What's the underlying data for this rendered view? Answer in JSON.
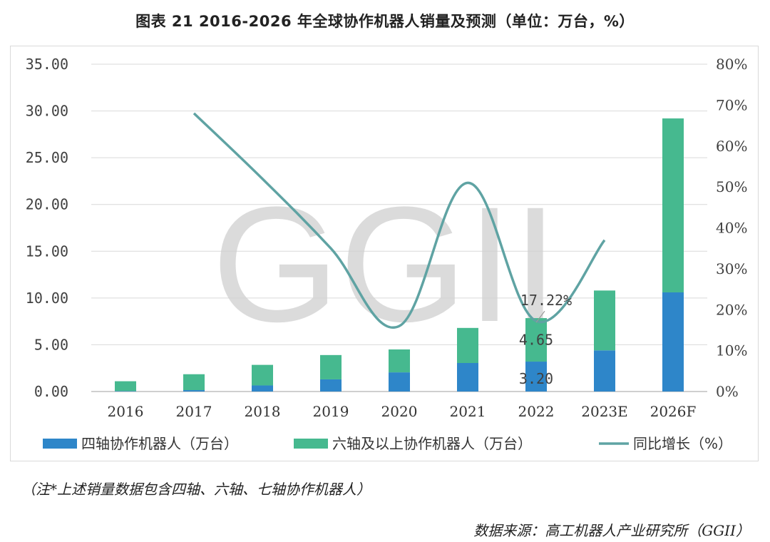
{
  "title": "图表 21   2016-2026 年全球协作机器人销量及预测（单位：万台，%）",
  "note": "（注*上述销量数据包含四轴、六轴、七轴协作机器人）",
  "source": "数据来源：高工机器人产业研究所（GGII）",
  "watermark": "GGII",
  "chart_data": {
    "type": "bar",
    "stacked": true,
    "categories": [
      "2016",
      "2017",
      "2018",
      "2019",
      "2020",
      "2021",
      "2022",
      "2023E",
      "2026F"
    ],
    "series": [
      {
        "name": "四轴协作机器人（万台）",
        "type": "bar",
        "axis": "left",
        "color": "#2e86c9",
        "values": [
          0.05,
          0.15,
          0.65,
          1.3,
          2.05,
          3.05,
          3.2,
          4.4,
          10.6
        ]
      },
      {
        "name": "六轴及以上协作机器人（万台）",
        "type": "bar",
        "axis": "left",
        "color": "#46b98f",
        "values": [
          1.05,
          1.7,
          2.2,
          2.6,
          2.45,
          3.75,
          4.65,
          6.4,
          18.6
        ]
      },
      {
        "name": "同比增长（%）",
        "type": "line",
        "axis": "right",
        "color": "#5fa3a3",
        "values": [
          null,
          68,
          52,
          35,
          16,
          51,
          17.22,
          37,
          null
        ]
      }
    ],
    "left_axis": {
      "min": 0,
      "max": 35,
      "ticks": [
        "0.00",
        "5.00",
        "10.00",
        "15.00",
        "20.00",
        "25.00",
        "30.00",
        "35.00"
      ]
    },
    "right_axis": {
      "min": 0,
      "max": 80,
      "ticks": [
        "0%",
        "10%",
        "20%",
        "30%",
        "40%",
        "50%",
        "60%",
        "70%",
        "80%"
      ]
    },
    "data_labels": [
      {
        "text": "17.22%",
        "category": "2022",
        "series": "同比增长（%）"
      },
      {
        "text": "4.65",
        "category": "2022",
        "series": "六轴及以上协作机器人（万台）"
      },
      {
        "text": "3.20",
        "category": "2022",
        "series": "四轴协作机器人（万台）"
      }
    ],
    "legend": "bottom",
    "grid": true
  }
}
